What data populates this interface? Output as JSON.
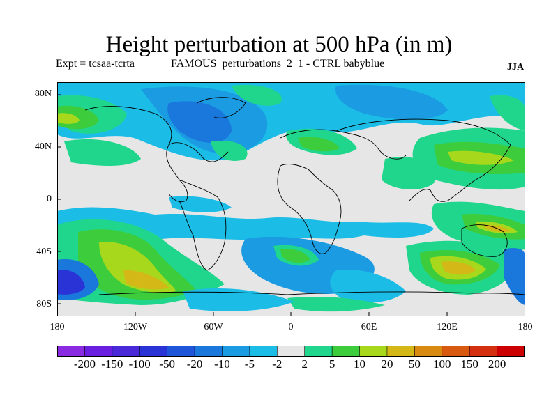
{
  "title": "Height perturbation at 500 hPa (in m)",
  "subtitle_left": "Expt = tcsaa-tcrta",
  "subtitle_mid": "FAMOUS_perturbations_2_1 - CTRL babyblue",
  "season": "JJA",
  "y_ticks": [
    "80N",
    "40N",
    "0",
    "40S",
    "80S"
  ],
  "x_ticks": [
    "180",
    "120W",
    "60W",
    "0",
    "60E",
    "120E",
    "180"
  ],
  "colorbar": {
    "labels": [
      "-200",
      "-150",
      "-100",
      "-50",
      "-20",
      "-10",
      "-5",
      "-2",
      "2",
      "5",
      "10",
      "20",
      "50",
      "100",
      "150",
      "200"
    ],
    "colors": [
      "#8a2be2",
      "#6a1fe0",
      "#4a2ad8",
      "#2a34d6",
      "#1f55d8",
      "#1a78dd",
      "#1a9be2",
      "#1bbde6",
      "#e6e6e6",
      "#1fd68c",
      "#3ccc3c",
      "#a8d81c",
      "#d4b818",
      "#d98a10",
      "#d85a10",
      "#d43010",
      "#cc0000"
    ]
  },
  "legend_meaning": {
    "neutral": "#e6e6e6"
  }
}
